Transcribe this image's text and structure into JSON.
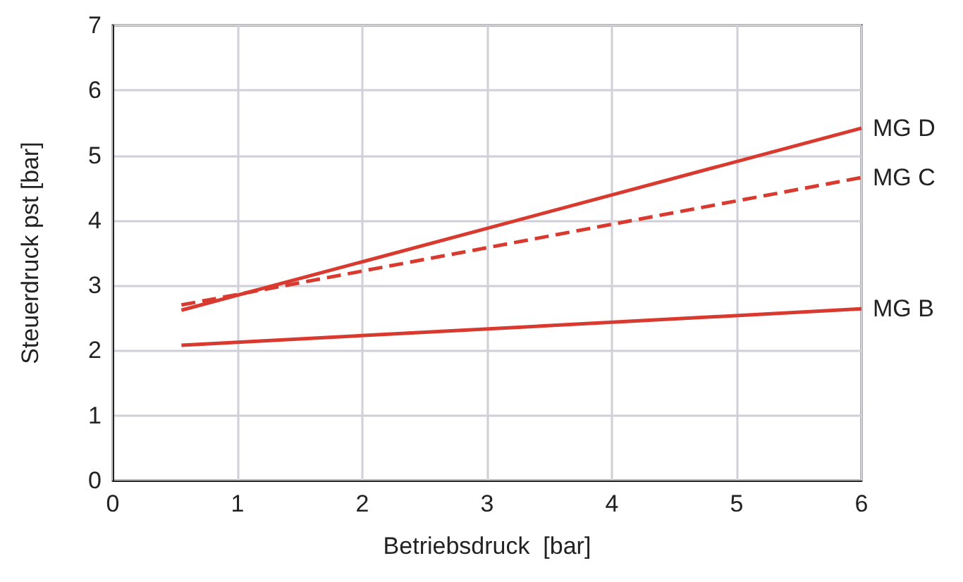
{
  "chart_data": {
    "type": "line",
    "xlabel": "Betriebsdruck  [bar]",
    "ylabel": "Steuerdruck pst [bar]",
    "xlim": [
      0,
      6
    ],
    "xticks": [
      0,
      1,
      2,
      3,
      4,
      5,
      6
    ],
    "ylim": [
      0,
      7
    ],
    "yticks": [
      0,
      1,
      2,
      3,
      4,
      5,
      6,
      7
    ],
    "grid": true,
    "marker": "none",
    "x": [
      0.55,
      6
    ],
    "series": [
      {
        "name": "MG D",
        "color": "#d93a2f",
        "values": [
          2.62,
          5.42
        ],
        "line_style": "solid"
      },
      {
        "name": "MG C",
        "color": "#d93a2f",
        "values": [
          2.7,
          4.66
        ],
        "line_style": "dashed"
      },
      {
        "name": "MG B",
        "color": "#d93a2f",
        "values": [
          2.08,
          2.64
        ],
        "line_style": "solid"
      }
    ]
  }
}
